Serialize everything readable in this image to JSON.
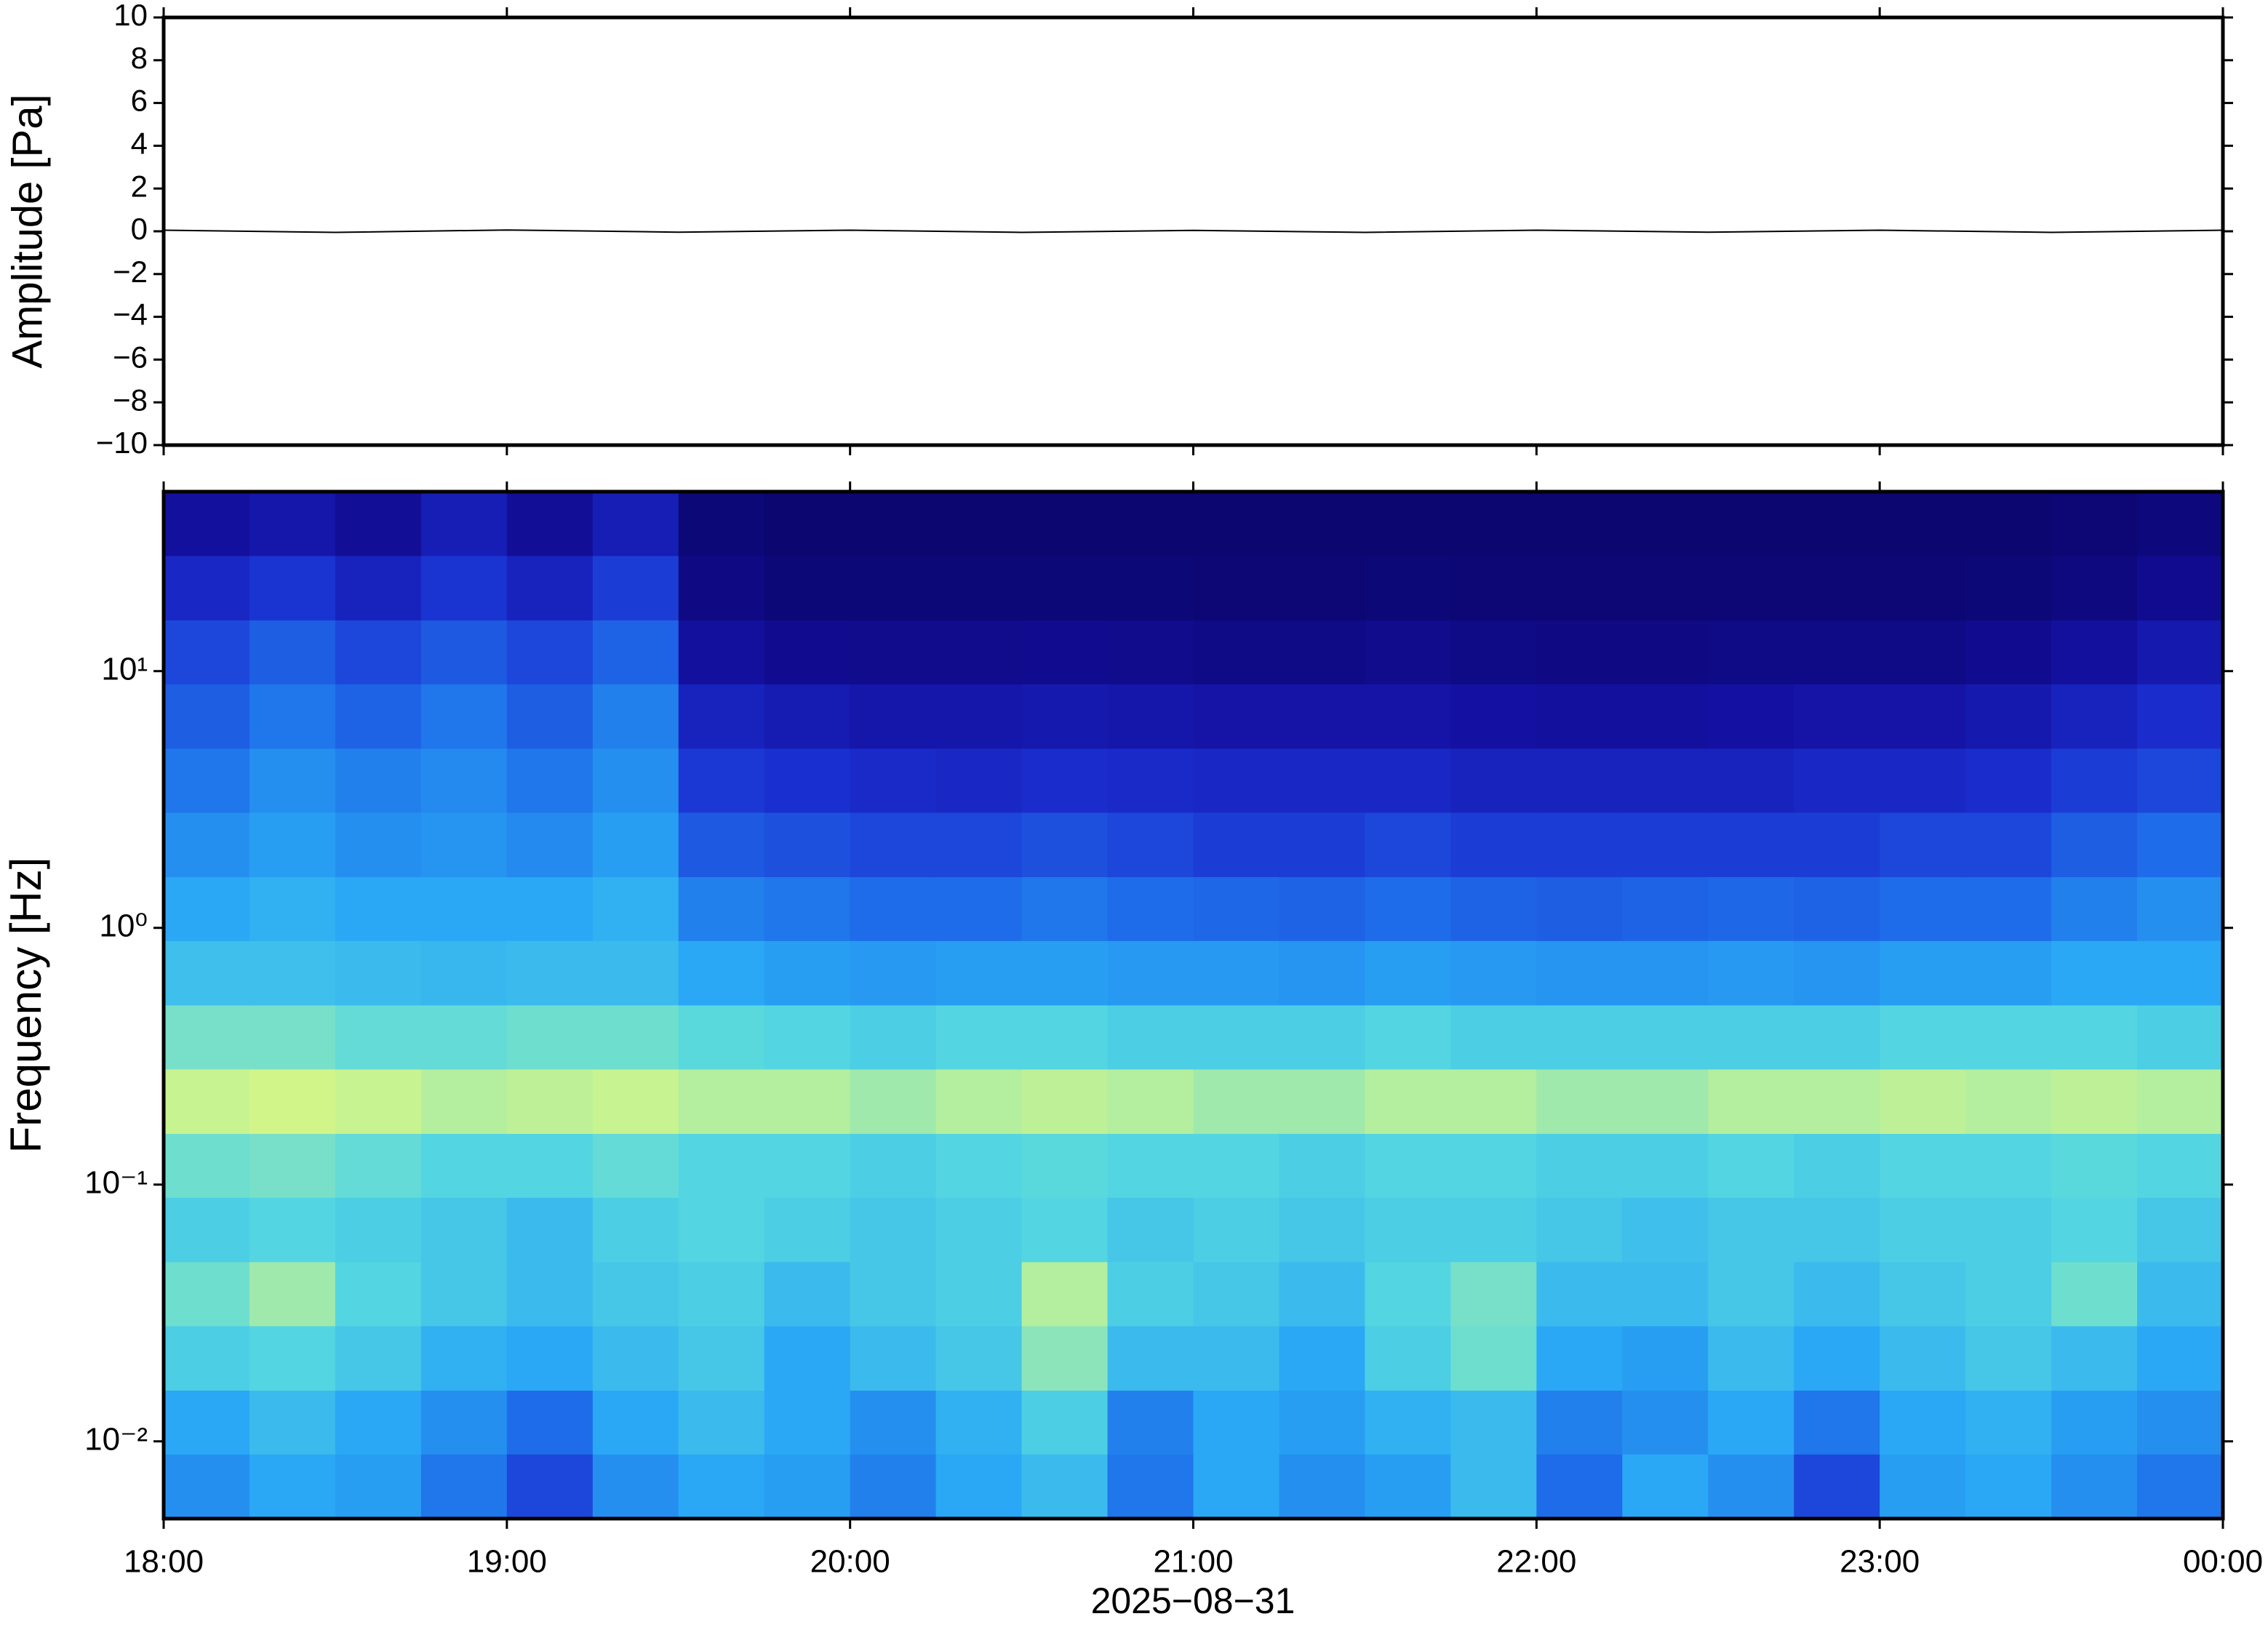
{
  "chart_data": [
    {
      "type": "line",
      "ylabel": "Amplitude [Pa]",
      "xlim": [
        18,
        24
      ],
      "ylim": [
        -10,
        10
      ],
      "yticks": [
        {
          "value": -10,
          "label": "−10"
        },
        {
          "value": -8,
          "label": "−8"
        },
        {
          "value": -6,
          "label": "−6"
        },
        {
          "value": -4,
          "label": "−4"
        },
        {
          "value": -2,
          "label": "−2"
        },
        0,
        2,
        4,
        6,
        8,
        10
      ],
      "series": [
        {
          "name": "waveform",
          "color": "#000000",
          "x": [
            18,
            18.5,
            19,
            19.5,
            20,
            20.5,
            21,
            21.5,
            22,
            22.5,
            23,
            23.5,
            24
          ],
          "values": [
            0.05,
            -0.05,
            0.06,
            -0.04,
            0.05,
            -0.05,
            0.04,
            -0.05,
            0.05,
            -0.04,
            0.05,
            -0.05,
            0.05
          ]
        }
      ]
    },
    {
      "type": "heatmap",
      "ylabel": "Frequency [Hz]",
      "xlabel": "2025−08−31",
      "log_y": true,
      "xlim": [
        18,
        24
      ],
      "ylim": [
        0.005,
        50
      ],
      "xticks": [
        {
          "value": 18,
          "label": "18:00"
        },
        {
          "value": 19,
          "label": "19:00"
        },
        {
          "value": 20,
          "label": "20:00"
        },
        {
          "value": 21,
          "label": "21:00"
        },
        {
          "value": 22,
          "label": "22:00"
        },
        {
          "value": 23,
          "label": "23:00"
        },
        {
          "value": 24,
          "label": "00:00"
        }
      ],
      "yticks": [
        {
          "value": 0.01,
          "label": "10⁻²"
        },
        {
          "value": 0.1,
          "label": "10⁻¹"
        },
        {
          "value": 1,
          "label": "10⁰"
        },
        {
          "value": 10,
          "label": "10¹"
        }
      ],
      "zlim": [
        0,
        0.75
      ],
      "colormap": [
        "#0b0670",
        "#1410a0",
        "#1a2fd0",
        "#1e6ae8",
        "#2aa8f5",
        "#55d8e0",
        "#d2f58a"
      ],
      "x": [
        18.125,
        18.375,
        18.625,
        18.875,
        19.125,
        19.375,
        19.625,
        19.875,
        20.125,
        20.375,
        20.625,
        20.875,
        21.125,
        21.375,
        21.625,
        21.875,
        22.125,
        22.375,
        22.625,
        22.875,
        23.125,
        23.375,
        23.625,
        23.875
      ],
      "y": [
        0.00668,
        0.0119,
        0.0211,
        0.0376,
        0.0668,
        0.119,
        0.211,
        0.376,
        0.668,
        1.19,
        2.11,
        3.76,
        6.68,
        11.9,
        21.1,
        37.6
      ],
      "z": [
        [
          0.45,
          0.5,
          0.48,
          0.4,
          0.3,
          0.45,
          0.5,
          0.48,
          0.42,
          0.5,
          0.55,
          0.4,
          0.5,
          0.45,
          0.48,
          0.55,
          0.38,
          0.5,
          0.45,
          0.3,
          0.48,
          0.5,
          0.45,
          0.4
        ],
        [
          0.5,
          0.55,
          0.5,
          0.45,
          0.38,
          0.5,
          0.55,
          0.5,
          0.45,
          0.52,
          0.6,
          0.42,
          0.5,
          0.48,
          0.52,
          0.55,
          0.42,
          0.45,
          0.5,
          0.4,
          0.5,
          0.52,
          0.48,
          0.45
        ],
        [
          0.6,
          0.62,
          0.58,
          0.52,
          0.5,
          0.55,
          0.58,
          0.5,
          0.55,
          0.58,
          0.68,
          0.55,
          0.55,
          0.5,
          0.6,
          0.65,
          0.5,
          0.48,
          0.55,
          0.5,
          0.55,
          0.58,
          0.55,
          0.5
        ],
        [
          0.65,
          0.7,
          0.62,
          0.58,
          0.55,
          0.58,
          0.6,
          0.55,
          0.58,
          0.6,
          0.72,
          0.6,
          0.58,
          0.55,
          0.62,
          0.66,
          0.55,
          0.55,
          0.58,
          0.55,
          0.58,
          0.6,
          0.65,
          0.55
        ],
        [
          0.6,
          0.62,
          0.6,
          0.58,
          0.55,
          0.6,
          0.62,
          0.6,
          0.58,
          0.6,
          0.62,
          0.58,
          0.6,
          0.58,
          0.6,
          0.6,
          0.58,
          0.56,
          0.58,
          0.58,
          0.6,
          0.6,
          0.62,
          0.58
        ],
        [
          0.65,
          0.66,
          0.64,
          0.62,
          0.62,
          0.64,
          0.62,
          0.62,
          0.6,
          0.62,
          0.63,
          0.62,
          0.62,
          0.6,
          0.62,
          0.62,
          0.6,
          0.6,
          0.62,
          0.6,
          0.62,
          0.62,
          0.63,
          0.62
        ],
        [
          0.74,
          0.75,
          0.74,
          0.72,
          0.73,
          0.74,
          0.72,
          0.72,
          0.7,
          0.72,
          0.73,
          0.72,
          0.7,
          0.7,
          0.72,
          0.72,
          0.7,
          0.7,
          0.72,
          0.72,
          0.73,
          0.72,
          0.73,
          0.72
        ],
        [
          0.66,
          0.66,
          0.64,
          0.64,
          0.65,
          0.65,
          0.63,
          0.62,
          0.6,
          0.62,
          0.62,
          0.6,
          0.6,
          0.6,
          0.62,
          0.6,
          0.6,
          0.6,
          0.6,
          0.6,
          0.62,
          0.62,
          0.62,
          0.6
        ],
        [
          0.56,
          0.56,
          0.55,
          0.54,
          0.55,
          0.55,
          0.5,
          0.48,
          0.47,
          0.48,
          0.48,
          0.47,
          0.47,
          0.46,
          0.48,
          0.47,
          0.46,
          0.46,
          0.47,
          0.46,
          0.48,
          0.48,
          0.5,
          0.5
        ],
        [
          0.5,
          0.52,
          0.5,
          0.5,
          0.5,
          0.52,
          0.42,
          0.4,
          0.38,
          0.38,
          0.4,
          0.38,
          0.37,
          0.36,
          0.38,
          0.36,
          0.35,
          0.36,
          0.37,
          0.36,
          0.38,
          0.38,
          0.42,
          0.45
        ],
        [
          0.45,
          0.48,
          0.45,
          0.46,
          0.44,
          0.48,
          0.34,
          0.32,
          0.3,
          0.3,
          0.32,
          0.3,
          0.28,
          0.28,
          0.3,
          0.28,
          0.28,
          0.28,
          0.28,
          0.28,
          0.3,
          0.3,
          0.35,
          0.38
        ],
        [
          0.4,
          0.45,
          0.42,
          0.44,
          0.4,
          0.45,
          0.27,
          0.25,
          0.23,
          0.22,
          0.24,
          0.23,
          0.22,
          0.22,
          0.22,
          0.2,
          0.2,
          0.2,
          0.2,
          0.22,
          0.22,
          0.24,
          0.28,
          0.3
        ],
        [
          0.35,
          0.4,
          0.36,
          0.4,
          0.35,
          0.42,
          0.2,
          0.17,
          0.15,
          0.15,
          0.16,
          0.15,
          0.14,
          0.14,
          0.14,
          0.13,
          0.12,
          0.12,
          0.13,
          0.14,
          0.14,
          0.16,
          0.2,
          0.24
        ],
        [
          0.3,
          0.35,
          0.3,
          0.34,
          0.3,
          0.36,
          0.12,
          0.08,
          0.07,
          0.07,
          0.08,
          0.07,
          0.06,
          0.06,
          0.07,
          0.06,
          0.05,
          0.05,
          0.06,
          0.06,
          0.06,
          0.08,
          0.12,
          0.16
        ],
        [
          0.22,
          0.26,
          0.2,
          0.26,
          0.2,
          0.28,
          0.05,
          0.02,
          0.02,
          0.02,
          0.02,
          0.02,
          0.01,
          0.01,
          0.02,
          0.01,
          0.01,
          0.01,
          0.01,
          0.01,
          0.01,
          0.02,
          0.04,
          0.08
        ],
        [
          0.12,
          0.15,
          0.1,
          0.18,
          0.1,
          0.18,
          0.02,
          0,
          0,
          0,
          0,
          0,
          0,
          0,
          0,
          0,
          0,
          0,
          0,
          0,
          0,
          0,
          0.01,
          0.03
        ]
      ]
    }
  ]
}
